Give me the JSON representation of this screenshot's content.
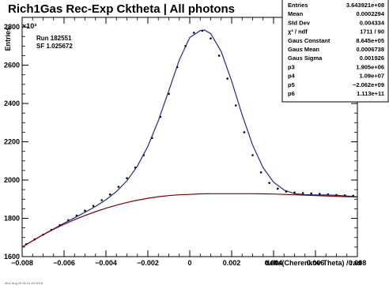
{
  "title": "Rich1Gas Rec-Exp Cktheta | All photons",
  "run_label": "Run 182551",
  "sf_label": "SF 1.025672",
  "footer": "Mon Aug 29 00:41:03 2016",
  "y_multiplier": "×10³",
  "stats": [
    {
      "label": "Entries",
      "value": "3.643921e+08"
    },
    {
      "label": "Mean",
      "value": "0.0002294"
    },
    {
      "label": "Std Dev",
      "value": "0.004334"
    },
    {
      "label": "χ² / ndf",
      "value": "1711 / 90"
    },
    {
      "label": "Gaus Constant",
      "value": "8.645e+05"
    },
    {
      "label": "Gaus Mean",
      "value": "0.0006738"
    },
    {
      "label": "Gaus Sigma",
      "value": "0.001926"
    },
    {
      "label": "p3",
      "value": "1.905e+06"
    },
    {
      "label": "p4",
      "value": "1.09e+07"
    },
    {
      "label": "p5",
      "value": "−2.062e+09"
    },
    {
      "label": "p6",
      "value": "1.113e+11"
    }
  ],
  "colors": {
    "data": "#000000",
    "fit_total": "#1a2a8c",
    "background": "#7a0000"
  },
  "chart_data": {
    "type": "scatter",
    "xlabel": "delta(Cherenkov Theta) / rad",
    "ylabel": "Entries",
    "xlim": [
      -0.008,
      0.008
    ],
    "ylim": [
      1600,
      2850
    ],
    "x_ticks": [
      -0.008,
      -0.006,
      -0.004,
      -0.002,
      0,
      0.002,
      0.004,
      0.006,
      0.008
    ],
    "x_tick_labels": [
      "−0.008",
      "−0.006",
      "−0.004",
      "−0.002",
      "0",
      "0.002",
      "0.004",
      "0.006",
      "0.008"
    ],
    "y_ticks": [
      1600,
      1800,
      2000,
      2200,
      2400,
      2600,
      2800
    ],
    "y_tick_labels": [
      "1600",
      "1800",
      "2000",
      "2200",
      "2400",
      "2600",
      "2800"
    ],
    "series": [
      {
        "kind": "points",
        "x": [
          -0.0078,
          -0.0074,
          -0.007,
          -0.0066,
          -0.0062,
          -0.0058,
          -0.0054,
          -0.005,
          -0.0046,
          -0.0042,
          -0.0038,
          -0.0034,
          -0.003,
          -0.0026,
          -0.0022,
          -0.0018,
          -0.0014,
          -0.001,
          -0.0006,
          -0.0002,
          0.0002,
          0.0006,
          0.001,
          0.0014,
          0.0018,
          0.0022,
          0.0026,
          0.003,
          0.0034,
          0.0038,
          0.0042,
          0.0046,
          0.005,
          0.0054,
          0.0058,
          0.0062,
          0.0066,
          0.007,
          0.0074,
          0.0078
        ],
        "y": [
          1665,
          1690,
          1715,
          1740,
          1765,
          1790,
          1815,
          1840,
          1865,
          1895,
          1925,
          1965,
          2010,
          2065,
          2130,
          2220,
          2330,
          2450,
          2590,
          2700,
          2770,
          2780,
          2740,
          2650,
          2530,
          2390,
          2250,
          2130,
          2040,
          1985,
          1955,
          1940,
          1935,
          1932,
          1930,
          1928,
          1925,
          1922,
          1920,
          1918
        ]
      },
      {
        "kind": "total_fit",
        "x": [
          -0.008,
          -0.0075,
          -0.007,
          -0.0065,
          -0.006,
          -0.0055,
          -0.005,
          -0.0045,
          -0.004,
          -0.0035,
          -0.003,
          -0.0025,
          -0.002,
          -0.0015,
          -0.001,
          -0.0005,
          0.0,
          0.0005,
          0.0007,
          0.001,
          0.0015,
          0.002,
          0.0025,
          0.003,
          0.0035,
          0.004,
          0.0045,
          0.005,
          0.0055,
          0.006,
          0.0065,
          0.007,
          0.0075,
          0.008
        ],
        "y": [
          1650,
          1683,
          1715,
          1745,
          1775,
          1803,
          1832,
          1862,
          1897,
          1940,
          1996,
          2073,
          2176,
          2311,
          2467,
          2628,
          2745,
          2781,
          2784,
          2765,
          2671,
          2517,
          2340,
          2183,
          2064,
          1989,
          1948,
          1929,
          1924,
          1922,
          1922,
          1920,
          1917,
          1912
        ]
      },
      {
        "kind": "background_fit",
        "x": [
          -0.008,
          -0.0075,
          -0.007,
          -0.0065,
          -0.006,
          -0.0055,
          -0.005,
          -0.0045,
          -0.004,
          -0.0035,
          -0.003,
          -0.0025,
          -0.002,
          -0.0015,
          -0.001,
          -0.0005,
          0.0,
          0.0005,
          0.001,
          0.0015,
          0.002,
          0.0025,
          0.003,
          0.0035,
          0.004,
          0.0045,
          0.005,
          0.0055,
          0.006,
          0.0065,
          0.007,
          0.0075,
          0.008
        ],
        "y": [
          1650,
          1683,
          1714,
          1743,
          1769,
          1793,
          1815,
          1835,
          1853,
          1869,
          1883,
          1895,
          1905,
          1913,
          1919,
          1923,
          1925,
          1928,
          1929,
          1929,
          1929,
          1929,
          1929,
          1928,
          1927,
          1925,
          1923,
          1921,
          1919,
          1917,
          1915,
          1913,
          1912
        ]
      }
    ]
  }
}
